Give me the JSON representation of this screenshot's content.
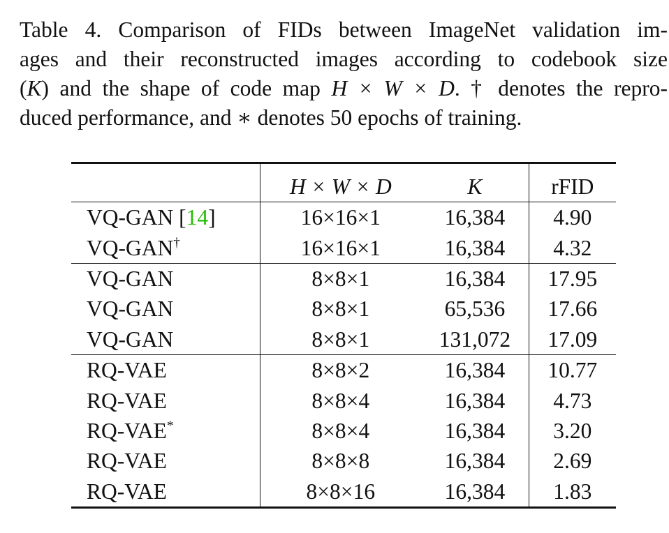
{
  "caption": {
    "line1": "Table 4.  Comparison of FIDs between ImageNet validation im-",
    "line2": "ages and their reconstructed images according to codebook size",
    "line3_a": "(",
    "line3_k": "K",
    "line3_b": ") and the shape of code map ",
    "line3_shape": "H × W × D",
    "line3_c": ". † denotes the repro-",
    "line4": "duced performance, and ∗ denotes 50 epochs of training."
  },
  "table": {
    "headers": {
      "method": "",
      "shape": "H × W × D",
      "k": "K",
      "rfid": "rFID"
    },
    "rows": [
      {
        "method": "VQ-GAN [",
        "cite": "14",
        "method_end": "]",
        "mark": "",
        "shape": "16×16×1",
        "k": "16,384",
        "rfid": "4.90"
      },
      {
        "method": "VQ-GAN",
        "cite": "",
        "method_end": "",
        "mark": "†",
        "shape": "16×16×1",
        "k": "16,384",
        "rfid": "4.32"
      },
      {
        "method": "VQ-GAN",
        "cite": "",
        "method_end": "",
        "mark": "",
        "shape": "8×8×1",
        "k": "16,384",
        "rfid": "17.95"
      },
      {
        "method": "VQ-GAN",
        "cite": "",
        "method_end": "",
        "mark": "",
        "shape": "8×8×1",
        "k": "65,536",
        "rfid": "17.66"
      },
      {
        "method": "VQ-GAN",
        "cite": "",
        "method_end": "",
        "mark": "",
        "shape": "8×8×1",
        "k": "131,072",
        "rfid": "17.09"
      },
      {
        "method": "RQ-VAE",
        "cite": "",
        "method_end": "",
        "mark": "",
        "shape": "8×8×2",
        "k": "16,384",
        "rfid": "10.77"
      },
      {
        "method": "RQ-VAE",
        "cite": "",
        "method_end": "",
        "mark": "",
        "shape": "8×8×4",
        "k": "16,384",
        "rfid": "4.73"
      },
      {
        "method": "RQ-VAE",
        "cite": "",
        "method_end": "",
        "mark": "*",
        "shape": "8×8×4",
        "k": "16,384",
        "rfid": "3.20"
      },
      {
        "method": "RQ-VAE",
        "cite": "",
        "method_end": "",
        "mark": "",
        "shape": "8×8×8",
        "k": "16,384",
        "rfid": "2.69"
      },
      {
        "method": "RQ-VAE",
        "cite": "",
        "method_end": "",
        "mark": "",
        "shape": "8×8×16",
        "k": "16,384",
        "rfid": "1.83"
      }
    ]
  }
}
